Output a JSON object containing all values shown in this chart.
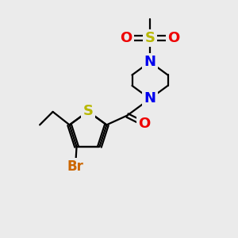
{
  "background_color": "#ebebeb",
  "bond_color": "#000000",
  "atom_colors": {
    "S_thiophene": "#b8b800",
    "S_sulfonyl": "#b8b800",
    "N": "#0000ee",
    "O": "#ee0000",
    "Br": "#cc6600",
    "C": "#000000"
  },
  "bond_width": 1.6,
  "font_size": 13
}
